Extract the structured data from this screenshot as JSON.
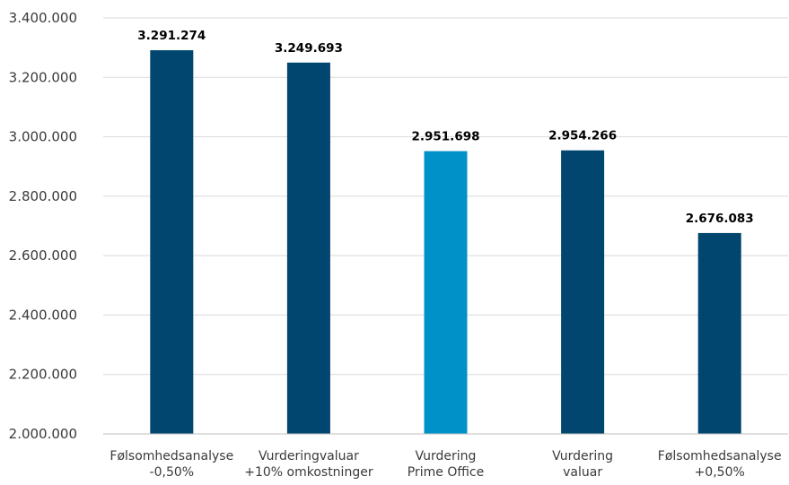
{
  "chart_data": {
    "type": "bar",
    "title": "",
    "xlabel": "",
    "ylabel": "",
    "ylim": [
      2000000,
      3400000
    ],
    "yticks": [
      2000000,
      2200000,
      2400000,
      2600000,
      2800000,
      3000000,
      3200000,
      3400000
    ],
    "ytick_labels": [
      "2.000.000",
      "2.200.000",
      "2.400.000",
      "2.600.000",
      "2.800.000",
      "3.000.000",
      "3.200.000",
      "3.400.000"
    ],
    "grid": true,
    "legend": "none",
    "categories": [
      [
        "Følsomhedsanalyse",
        "-0,50%"
      ],
      [
        "Vurderingvaluar",
        "+10% omkostninger"
      ],
      [
        "Vurdering",
        "Prime Office"
      ],
      [
        "Vurdering",
        "valuar"
      ],
      [
        "Følsomhedsanalyse",
        "+0,50%"
      ]
    ],
    "values": [
      3291274,
      3249693,
      2951698,
      2954266,
      2676083
    ],
    "data_labels": [
      "3.291.274",
      "3.249.693",
      "2.951.698",
      "2.954.266",
      "2.676.083"
    ],
    "bar_colors": [
      "#00466e",
      "#00466e",
      "#0091c8",
      "#00466e",
      "#00466e"
    ]
  }
}
